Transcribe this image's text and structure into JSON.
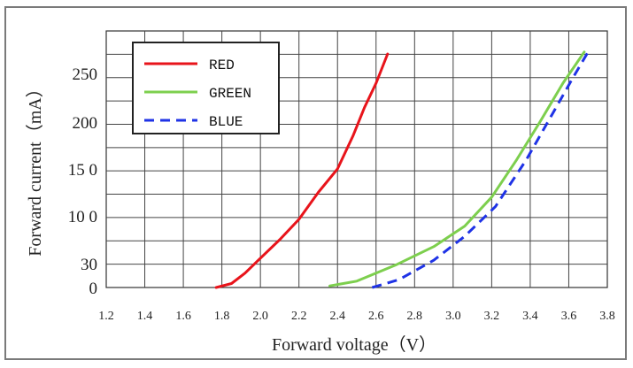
{
  "chart_data": {
    "type": "line",
    "xlabel": "Forward voltage（V）",
    "ylabel": "Forward current（mA）",
    "x_ticks": [
      "1.2",
      "1.4",
      "1.6",
      "1.8",
      "2.0",
      "2.2",
      "2.4",
      "2.6",
      "2.8",
      "3.0",
      "3.2",
      "3.4",
      "3.6",
      "3.8"
    ],
    "y_ticks": [
      {
        "value": 0,
        "label": "0"
      },
      {
        "value": 30,
        "label": "30"
      },
      {
        "value": 100,
        "label": "10 0"
      },
      {
        "value": 150,
        "label": "15 0"
      },
      {
        "value": 200,
        "label": "200"
      },
      {
        "value": 250,
        "label": "250"
      }
    ],
    "xlim": [
      1.2,
      3.8
    ],
    "ylim": [
      0,
      280
    ],
    "grid": true,
    "legend_position": "top-left",
    "series": [
      {
        "name": "RED",
        "color": "#e8141b",
        "dash": "solid",
        "points": [
          [
            1.77,
            0
          ],
          [
            1.85,
            5
          ],
          [
            1.92,
            18
          ],
          [
            2.0,
            38
          ],
          [
            2.1,
            65
          ],
          [
            2.2,
            95
          ],
          [
            2.3,
            125
          ],
          [
            2.4,
            150
          ],
          [
            2.48,
            185
          ],
          [
            2.54,
            215
          ],
          [
            2.6,
            240
          ],
          [
            2.66,
            270
          ]
        ]
      },
      {
        "name": "GREEN",
        "color": "#7dcf4e",
        "dash": "solid",
        "points": [
          [
            2.36,
            2
          ],
          [
            2.5,
            8
          ],
          [
            2.7,
            28
          ],
          [
            2.9,
            55
          ],
          [
            3.06,
            85
          ],
          [
            3.2,
            120
          ],
          [
            3.33,
            160
          ],
          [
            3.45,
            200
          ],
          [
            3.57,
            240
          ],
          [
            3.68,
            272
          ]
        ]
      },
      {
        "name": "BLUE",
        "color": "#1f33e6",
        "dash": "dashed",
        "points": [
          [
            2.58,
            0
          ],
          [
            2.72,
            10
          ],
          [
            2.9,
            35
          ],
          [
            3.06,
            70
          ],
          [
            3.22,
            110
          ],
          [
            3.38,
            160
          ],
          [
            3.52,
            210
          ],
          [
            3.62,
            245
          ],
          [
            3.7,
            272
          ]
        ]
      }
    ]
  }
}
